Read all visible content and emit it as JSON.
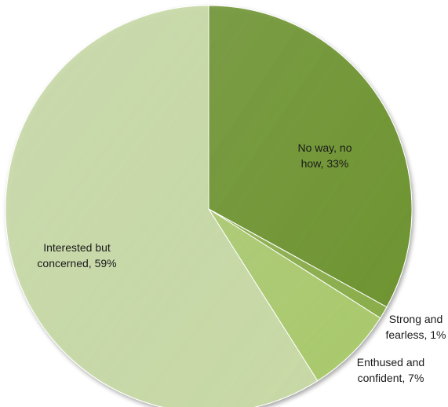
{
  "chart_data": {
    "type": "pie",
    "title": "",
    "slices": [
      {
        "label_lines": [
          "No way, no",
          "how, 33%"
        ],
        "category": "No way, no how",
        "value": 33,
        "color": "#6e9431"
      },
      {
        "label_lines": [
          "Strong and",
          "fearless, 1%"
        ],
        "category": "Strong and fearless",
        "value": 1,
        "color": "#8aad4a"
      },
      {
        "label_lines": [
          "Enthused and",
          "confident, 7%"
        ],
        "category": "Enthused and confident",
        "value": 7,
        "color": "#a9c96c"
      },
      {
        "label_lines": [
          "Interested but",
          "concerned, 59%"
        ],
        "category": "Interested but concerned",
        "value": 59,
        "color": "#c7d9a6"
      }
    ],
    "start_angle_deg": 0,
    "direction": "clockwise",
    "legend": "none",
    "data_labels": "category-and-percent"
  }
}
